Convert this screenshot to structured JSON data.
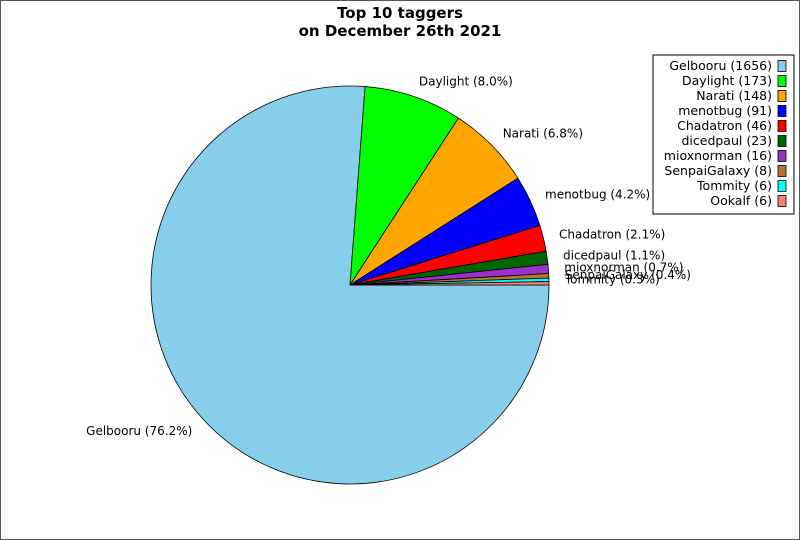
{
  "chart_data": {
    "type": "pie",
    "title": "Top 10 taggers",
    "subtitle": "on December 26th 2021",
    "slices": [
      {
        "label": "Gelbooru",
        "value": 1656,
        "percent_label": "76.2%",
        "color": "#87ceeb"
      },
      {
        "label": "Daylight",
        "value": 173,
        "percent_label": "8.0%",
        "color": "#00ff00"
      },
      {
        "label": "Narati",
        "value": 148,
        "percent_label": "6.8%",
        "color": "#ffa500"
      },
      {
        "label": "menotbug",
        "value": 91,
        "percent_label": "4.2%",
        "color": "#0000ff"
      },
      {
        "label": "Chadatron",
        "value": 46,
        "percent_label": "2.1%",
        "color": "#ff0000"
      },
      {
        "label": "dicedpaul",
        "value": 23,
        "percent_label": "1.1%",
        "color": "#006400"
      },
      {
        "label": "mioxnorman",
        "value": 16,
        "percent_label": "0.7%",
        "color": "#9932cc"
      },
      {
        "label": "SenpaiGalaxy",
        "value": 8,
        "percent_label": "0.4%",
        "color": "#b87333"
      },
      {
        "label": "Tommity",
        "value": 6,
        "percent_label": "0.3%",
        "color": "#00ffff"
      },
      {
        "label": "Ookalf",
        "value": 6,
        "percent_label": "0.3%",
        "color": "#fa8072"
      }
    ],
    "slice_labels": [
      "Gelbooru (76.2%)",
      "Daylight (8.0%)",
      "Narati (6.8%)",
      "menotbug (4.2%)",
      "Chadatron (2.1%)",
      "dicedpaul (1.1%)",
      "mioxnorman (0.7%)",
      "SenpaiGalaxy (0.4%)",
      "Tommity (0.3%)"
    ],
    "legend": {
      "placement": "top-right",
      "entries": [
        "Gelbooru (1656)",
        "Daylight (173)",
        "Narati (148)",
        "menotbug (91)",
        "Chadatron (46)",
        "dicedpaul (23)",
        "mioxnorman (16)",
        "SenpaiGalaxy (8)",
        "Tommity (6)",
        "Ookalf (6)"
      ]
    }
  }
}
